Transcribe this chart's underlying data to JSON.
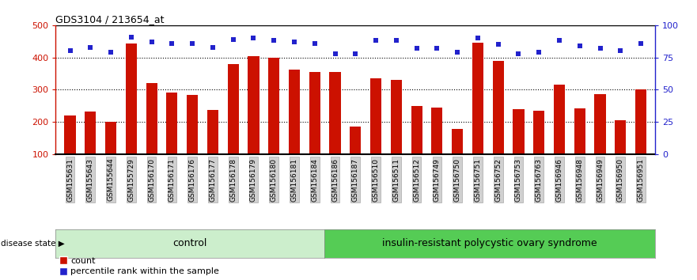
{
  "title": "GDS3104 / 213654_at",
  "samples": [
    "GSM155631",
    "GSM155643",
    "GSM155644",
    "GSM155729",
    "GSM156170",
    "GSM156171",
    "GSM156176",
    "GSM156177",
    "GSM156178",
    "GSM156179",
    "GSM156180",
    "GSM156181",
    "GSM156184",
    "GSM156186",
    "GSM156187",
    "GSM156510",
    "GSM156511",
    "GSM156512",
    "GSM156749",
    "GSM156750",
    "GSM156751",
    "GSM156752",
    "GSM156753",
    "GSM156763",
    "GSM156946",
    "GSM156948",
    "GSM156949",
    "GSM156950",
    "GSM156951"
  ],
  "counts": [
    220,
    233,
    200,
    442,
    320,
    292,
    283,
    237,
    380,
    405,
    400,
    363,
    355,
    355,
    185,
    335,
    330,
    250,
    243,
    178,
    445,
    390,
    240,
    235,
    316,
    242,
    287,
    204,
    300
  ],
  "percentile_ranks": [
    80,
    83,
    79,
    91,
    87,
    86,
    86,
    83,
    89,
    90,
    88,
    87,
    86,
    78,
    78,
    88,
    88,
    82,
    82,
    79,
    90,
    85,
    78,
    79,
    88,
    84,
    82,
    80,
    86
  ],
  "control_count": 13,
  "control_label": "control",
  "disease_label": "insulin-resistant polycystic ovary syndrome",
  "bar_color": "#cc1100",
  "dot_color": "#2222cc",
  "left_ylim": [
    100,
    500
  ],
  "right_ylim": [
    0,
    100
  ],
  "left_yticks": [
    100,
    200,
    300,
    400,
    500
  ],
  "right_yticks": [
    0,
    25,
    50,
    75,
    100
  ],
  "grid_values": [
    200,
    300,
    400
  ],
  "legend_count_label": "count",
  "legend_pct_label": "percentile rank within the sample",
  "disease_state_label": "disease state",
  "control_color": "#cceecc",
  "disease_color": "#55cc55",
  "fig_width": 8.81,
  "fig_height": 3.54
}
